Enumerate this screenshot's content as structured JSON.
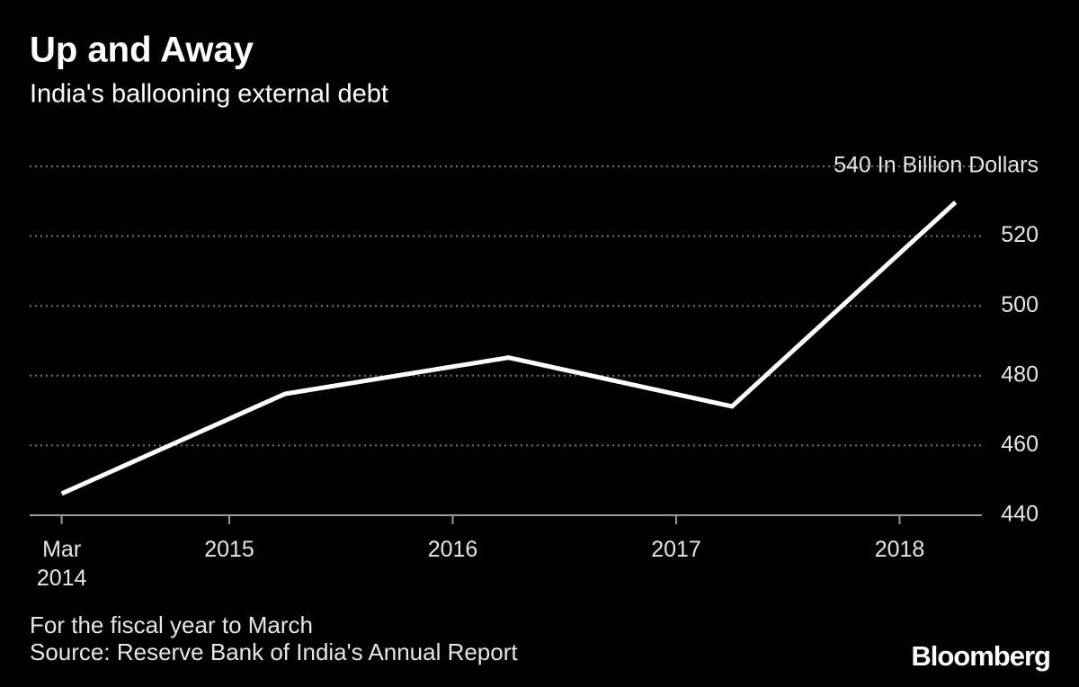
{
  "chart_data": {
    "type": "line",
    "title": "Up and Away",
    "subtitle": "India's ballooning external debt",
    "x": [
      "2014-03",
      "2015-03",
      "2016-03",
      "2017-03",
      "2018-03"
    ],
    "series": [
      {
        "color": "#ffffff",
        "values": [
          446.2,
          474.8,
          485.2,
          471.2,
          529.7
        ]
      }
    ],
    "xticks": [
      {
        "value": "2014-03",
        "label": "Mar 2014"
      },
      2015,
      2016,
      2017,
      2018
    ],
    "ylim": [
      440,
      540
    ],
    "yticks": [
      440,
      460,
      480,
      500,
      520,
      {
        "value": 540,
        "label": "540 In Billion Dollars"
      }
    ],
    "grid": true,
    "note": "For the fiscal year to March",
    "source": "Source: Reserve Bank of India's Annual Report"
  },
  "logo": "Bloomberg"
}
